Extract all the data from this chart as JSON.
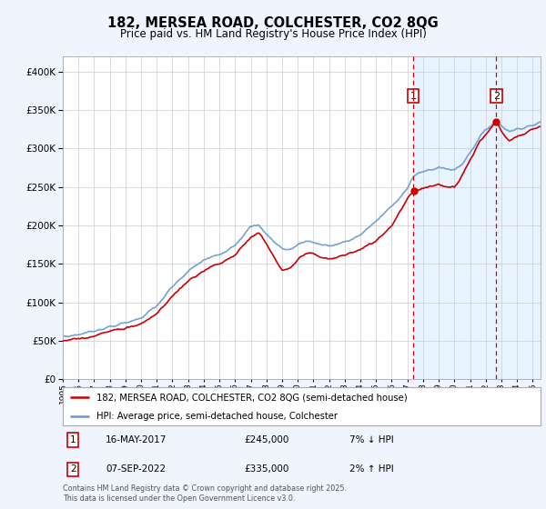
{
  "title": "182, MERSEA ROAD, COLCHESTER, CO2 8QG",
  "subtitle": "Price paid vs. HM Land Registry's House Price Index (HPI)",
  "legend_line1": "182, MERSEA ROAD, COLCHESTER, CO2 8QG (semi-detached house)",
  "legend_line2": "HPI: Average price, semi-detached house, Colchester",
  "annotation1_label": "1",
  "annotation1_date": "16-MAY-2017",
  "annotation1_price": "£245,000",
  "annotation1_hpi": "7% ↓ HPI",
  "annotation1_year": 2017.37,
  "annotation1_value": 245000,
  "annotation2_label": "2",
  "annotation2_date": "07-SEP-2022",
  "annotation2_price": "£335,000",
  "annotation2_hpi": "2% ↑ HPI",
  "annotation2_year": 2022.68,
  "annotation2_value": 335000,
  "footer": "Contains HM Land Registry data © Crown copyright and database right 2025.\nThis data is licensed under the Open Government Licence v3.0.",
  "ylim": [
    0,
    420000
  ],
  "yticks": [
    0,
    50000,
    100000,
    150000,
    200000,
    250000,
    300000,
    350000,
    400000
  ],
  "background_color": "#f0f4ff",
  "plot_bg_color": "#ffffff",
  "hpi_color": "#6699cc",
  "price_color": "#cc0000",
  "vline_color": "#cc0000",
  "shade_color": "#ddeeff"
}
